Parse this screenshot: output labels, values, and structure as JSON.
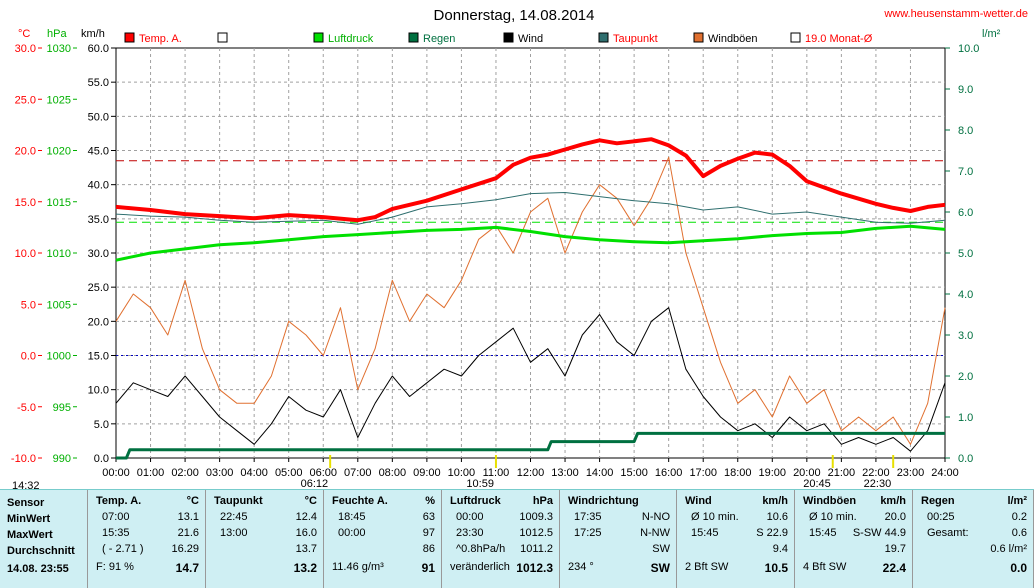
{
  "header": {
    "title": "Donnerstag, 14.08.2014",
    "site": "www.heusenstamm-wetter.de"
  },
  "units": {
    "temp": "°C",
    "press": "hPa",
    "wind": "km/h",
    "rain": "l/m²"
  },
  "legend": [
    {
      "label": "Temp. A.",
      "color": "#ff0000",
      "label_color": "#ff0000"
    },
    {
      "label": "",
      "color": "#ffffff",
      "label_color": "#000000"
    },
    {
      "label": "Luftdruck",
      "color": "#00e000",
      "label_color": "#00b000"
    },
    {
      "label": "Regen",
      "color": "#007040",
      "label_color": "#007040"
    },
    {
      "label": "Wind",
      "color": "#000000",
      "label_color": "#000000"
    },
    {
      "label": "Taupunkt",
      "color": "#2f6f6f",
      "label_color": "#ff0000"
    },
    {
      "label": "Windböen",
      "color": "#e07030",
      "label_color": "#000000"
    },
    {
      "label": "19.0 Monat-Ø",
      "color": "#ffffff",
      "label_color": "#ff0000"
    }
  ],
  "markers": [
    {
      "time": "14:32",
      "pos": "left-bottom",
      "hour": 0
    },
    {
      "time": "06:12",
      "pos": "top",
      "hour": 6.2
    },
    {
      "time": "10:59",
      "pos": "top",
      "hour": 11.0
    },
    {
      "time": "20:45",
      "pos": "top",
      "hour": 20.75
    },
    {
      "time": "22:30",
      "pos": "top",
      "hour": 22.5
    }
  ],
  "chart_data": {
    "type": "line",
    "x_ticks": [
      "00:00",
      "01:00",
      "02:00",
      "03:00",
      "04:00",
      "05:00",
      "06:00",
      "07:00",
      "08:00",
      "09:00",
      "10:00",
      "11:00",
      "12:00",
      "13:00",
      "14:00",
      "15:00",
      "16:00",
      "17:00",
      "18:00",
      "19:00",
      "20:00",
      "21:00",
      "22:00",
      "23:00",
      "24:00"
    ],
    "xlim": [
      0,
      24
    ],
    "axes": {
      "temp": {
        "ticks": [
          "30.0",
          "25.0",
          "20.0",
          "15.0",
          "10.0",
          "5.0",
          "0.0",
          "-5.0",
          "-10.0"
        ],
        "ylim": [
          -10,
          30
        ]
      },
      "press": {
        "ticks": [
          "1030",
          "1025",
          "1020",
          "1015",
          "1010",
          "1005",
          "1000",
          "995",
          "990"
        ],
        "ylim": [
          990,
          1030
        ]
      },
      "wind": {
        "ticks": [
          "60.0",
          "55.0",
          "50.0",
          "45.0",
          "40.0",
          "35.0",
          "30.0",
          "25.0",
          "20.0",
          "15.0",
          "10.0",
          "5.0",
          "0.0"
        ],
        "ylim": [
          0,
          60
        ]
      },
      "rain": {
        "ticks": [
          "10.0",
          "9.0",
          "8.0",
          "7.0",
          "6.0",
          "5.0",
          "4.0",
          "3.0",
          "2.0",
          "1.0",
          "0.0"
        ],
        "ylim": [
          0,
          10
        ]
      }
    },
    "month_avg_temp": 19.0,
    "zero_line_temp": 0.0,
    "dewpoint_ref": 13.0,
    "grid": true,
    "series": [
      {
        "name": "Temp. A.",
        "axis": "temp",
        "x": [
          0,
          1,
          2,
          3,
          4,
          5,
          6,
          7,
          7.5,
          8,
          9,
          10,
          11,
          11.5,
          12,
          12.5,
          13,
          13.5,
          14,
          14.5,
          15,
          15.5,
          16,
          16.5,
          17,
          17.5,
          18,
          18.5,
          19,
          19.5,
          20,
          21,
          22,
          22.5,
          23,
          23.5,
          24
        ],
        "y": [
          14.5,
          14.2,
          13.8,
          13.6,
          13.4,
          13.7,
          13.5,
          13.2,
          13.5,
          14.3,
          15.1,
          16.2,
          17.3,
          18.6,
          19.3,
          19.6,
          20.1,
          20.6,
          21.0,
          20.7,
          20.9,
          21.1,
          20.5,
          19.5,
          17.5,
          18.5,
          19.2,
          19.8,
          19.6,
          18.5,
          17.0,
          15.8,
          14.8,
          14.4,
          14.1,
          14.5,
          14.7
        ]
      },
      {
        "name": "Taupunkt",
        "axis": "temp",
        "x": [
          0,
          1,
          2,
          3,
          4,
          5,
          6,
          7,
          8,
          9,
          10,
          11,
          12,
          13,
          14,
          15,
          16,
          17,
          18,
          19,
          20,
          21,
          22,
          23,
          24
        ],
        "y": [
          13.8,
          13.6,
          13.5,
          13.2,
          13.0,
          13.1,
          13.2,
          12.8,
          13.5,
          14.5,
          14.8,
          15.2,
          15.8,
          15.9,
          15.5,
          15.1,
          14.8,
          14.2,
          14.5,
          13.8,
          14.0,
          13.5,
          13.0,
          12.9,
          13.2
        ]
      },
      {
        "name": "Luftdruck",
        "axis": "press",
        "x": [
          0,
          1,
          2,
          3,
          4,
          5,
          6,
          7,
          8,
          9,
          10,
          11,
          12,
          13,
          14,
          15,
          16,
          17,
          18,
          19,
          20,
          21,
          22,
          23,
          24
        ],
        "y": [
          1009.3,
          1010.0,
          1010.4,
          1010.8,
          1011.0,
          1011.3,
          1011.6,
          1011.8,
          1012.0,
          1012.2,
          1012.3,
          1012.5,
          1012.1,
          1011.6,
          1011.3,
          1011.1,
          1011.0,
          1011.2,
          1011.4,
          1011.7,
          1011.9,
          1012.0,
          1012.4,
          1012.6,
          1012.3
        ]
      },
      {
        "name": "Wind",
        "axis": "wind",
        "x": [
          0,
          0.5,
          1,
          1.5,
          2,
          2.5,
          3,
          3.5,
          4,
          4.5,
          5,
          5.5,
          6,
          6.5,
          7,
          7.5,
          8,
          8.5,
          9,
          9.5,
          10,
          10.5,
          11,
          11.5,
          12,
          12.5,
          13,
          13.5,
          14,
          14.5,
          15,
          15.5,
          16,
          16.5,
          17,
          17.5,
          18,
          18.5,
          19,
          19.5,
          20,
          20.5,
          21,
          21.5,
          22,
          22.5,
          23,
          23.5,
          24
        ],
        "y": [
          8,
          11,
          10,
          9,
          12,
          9,
          6,
          4,
          2,
          5,
          9,
          7,
          6,
          10,
          3,
          8,
          12,
          9,
          11,
          13,
          12,
          15,
          17,
          19,
          14,
          16,
          12,
          18,
          21,
          17,
          15,
          20,
          22,
          13,
          9,
          6,
          4,
          5,
          3,
          6,
          4,
          5,
          2,
          3,
          2,
          3,
          1,
          4,
          11
        ]
      },
      {
        "name": "Windböen",
        "axis": "wind",
        "x": [
          0,
          0.5,
          1,
          1.5,
          2,
          2.5,
          3,
          3.5,
          4,
          4.5,
          5,
          5.5,
          6,
          6.5,
          7,
          7.5,
          8,
          8.5,
          9,
          9.5,
          10,
          10.5,
          11,
          11.5,
          12,
          12.5,
          13,
          13.5,
          14,
          14.5,
          15,
          15.5,
          16,
          16.5,
          17,
          17.5,
          18,
          18.5,
          19,
          19.5,
          20,
          20.5,
          21,
          21.5,
          22,
          22.5,
          23,
          23.5,
          24
        ],
        "y": [
          20,
          24,
          22,
          18,
          26,
          16,
          10,
          8,
          8,
          12,
          20,
          18,
          15,
          22,
          10,
          16,
          26,
          20,
          24,
          22,
          26,
          32,
          34,
          30,
          36,
          38,
          30,
          36,
          40,
          38,
          34,
          38,
          44,
          30,
          22,
          14,
          8,
          10,
          6,
          12,
          8,
          10,
          4,
          6,
          4,
          6,
          2,
          8,
          22
        ]
      },
      {
        "name": "Regen",
        "axis": "rain",
        "x": [
          0,
          0.3,
          0.4,
          12.5,
          12.6,
          15.0,
          15.1,
          24
        ],
        "y": [
          0.0,
          0.0,
          0.2,
          0.2,
          0.4,
          0.4,
          0.6,
          0.6
        ]
      }
    ]
  },
  "table": {
    "sensor": {
      "header": "Sensor",
      "rows": [
        "MinWert",
        "MaxWert",
        "Durchschnitt"
      ],
      "footer": "14.08. 23:55"
    },
    "temp": {
      "header": "Temp. A.",
      "unit": "°C",
      "rows": [
        [
          "07:00",
          "13.1"
        ],
        [
          "15:35",
          "21.6"
        ],
        [
          "( - 2.71 )",
          "16.29"
        ]
      ],
      "footer": [
        "F: 91 %",
        "14.7"
      ]
    },
    "dew": {
      "header": "Taupunkt",
      "unit": "°C",
      "rows": [
        [
          "22:45",
          "12.4"
        ],
        [
          "13:00",
          "16.0"
        ],
        [
          "",
          "13.7"
        ]
      ],
      "footer": [
        "",
        "13.2"
      ]
    },
    "hum": {
      "header": "Feuchte A.",
      "unit": "%",
      "rows": [
        [
          "18:45",
          "63"
        ],
        [
          "00:00",
          "97"
        ],
        [
          "",
          "86"
        ]
      ],
      "footer": [
        "11.46 g/m³",
        "91"
      ]
    },
    "press": {
      "header": "Luftdruck",
      "unit": "hPa",
      "rows": [
        [
          "00:00",
          "1009.3"
        ],
        [
          "23:30",
          "1012.5"
        ],
        [
          "^0.8hPa/h",
          "1011.2"
        ]
      ],
      "footer": [
        "veränderlich",
        "1012.3"
      ]
    },
    "dir": {
      "header": "Windrichtung",
      "unit": "",
      "rows": [
        [
          "17:35",
          "N-NO"
        ],
        [
          "17:25",
          "N-NW"
        ],
        [
          "",
          "SW"
        ]
      ],
      "footer": [
        "234 °",
        "SW"
      ]
    },
    "wind": {
      "header": "Wind",
      "unit": "km/h",
      "rows": [
        [
          "Ø 10 min.",
          "10.6"
        ],
        [
          "15:45",
          "S 22.9"
        ],
        [
          "",
          "9.4"
        ]
      ],
      "footer": [
        "2 Bft SW",
        "10.5"
      ]
    },
    "gust": {
      "header": "Windböen",
      "unit": "km/h",
      "rows": [
        [
          "Ø 10 min.",
          "20.0"
        ],
        [
          "15:45",
          "S-SW 44.9"
        ],
        [
          "",
          "19.7"
        ]
      ],
      "footer": [
        "4 Bft SW",
        "22.4"
      ]
    },
    "rain": {
      "header": "Regen",
      "unit": "l/m²",
      "rows": [
        [
          "00:25",
          "0.2"
        ],
        [
          "Gesamt:",
          "0.6"
        ],
        [
          "",
          "0.6 l/m²"
        ]
      ],
      "footer": [
        "",
        "0.0"
      ]
    }
  }
}
